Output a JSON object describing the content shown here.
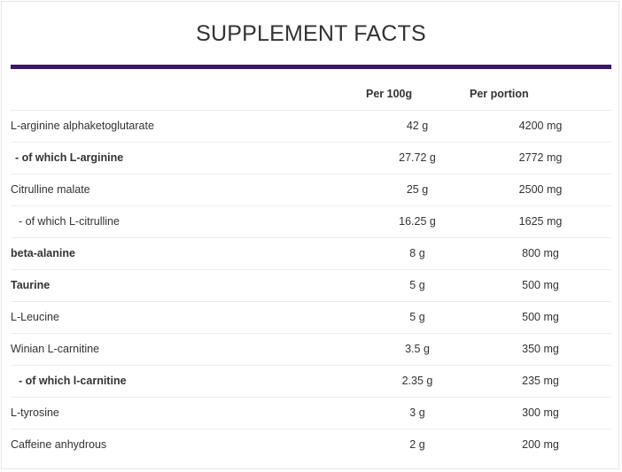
{
  "title": "SUPPLEMENT FACTS",
  "accent_color": "#3a1670",
  "headers": {
    "per100g": "Per 100g",
    "per_portion": "Per portion"
  },
  "rows": [
    {
      "name": "L-arginine alphaketoglutarate",
      "per100g": "42 g",
      "per_portion": "4200 mg",
      "bold": false,
      "indent": 0
    },
    {
      "name": " - of which L-arginine",
      "per100g": "27.72 g",
      "per_portion": "2772 mg",
      "bold": true,
      "indent": 1
    },
    {
      "name": "Citrulline malate",
      "per100g": "25 g",
      "per_portion": "2500 mg",
      "bold": false,
      "indent": 0
    },
    {
      "name": "- of which L-citrulline",
      "per100g": "16.25 g",
      "per_portion": "1625 mg",
      "bold": false,
      "indent": 2
    },
    {
      "name": "beta-alanine",
      "per100g": "8 g",
      "per_portion": "800 mg",
      "bold": true,
      "indent": 0
    },
    {
      "name": "Taurine",
      "per100g": "5 g",
      "per_portion": "500 mg",
      "bold": true,
      "indent": 0
    },
    {
      "name": "L-Leucine",
      "per100g": "5 g",
      "per_portion": "500 mg",
      "bold": false,
      "indent": 0
    },
    {
      "name": "Winian L-carnitine",
      "per100g": "3.5 g",
      "per_portion": "350 mg",
      "bold": false,
      "indent": 0
    },
    {
      "name": "- of which l-carnitine",
      "per100g": "2.35 g",
      "per_portion": "235 mg",
      "bold": true,
      "indent": 2
    },
    {
      "name": "L-tyrosine",
      "per100g": "3 g",
      "per_portion": "300 mg",
      "bold": false,
      "indent": 0
    },
    {
      "name": "Caffeine anhydrous",
      "per100g": "2 g",
      "per_portion": "200 mg",
      "bold": false,
      "indent": 0
    }
  ]
}
